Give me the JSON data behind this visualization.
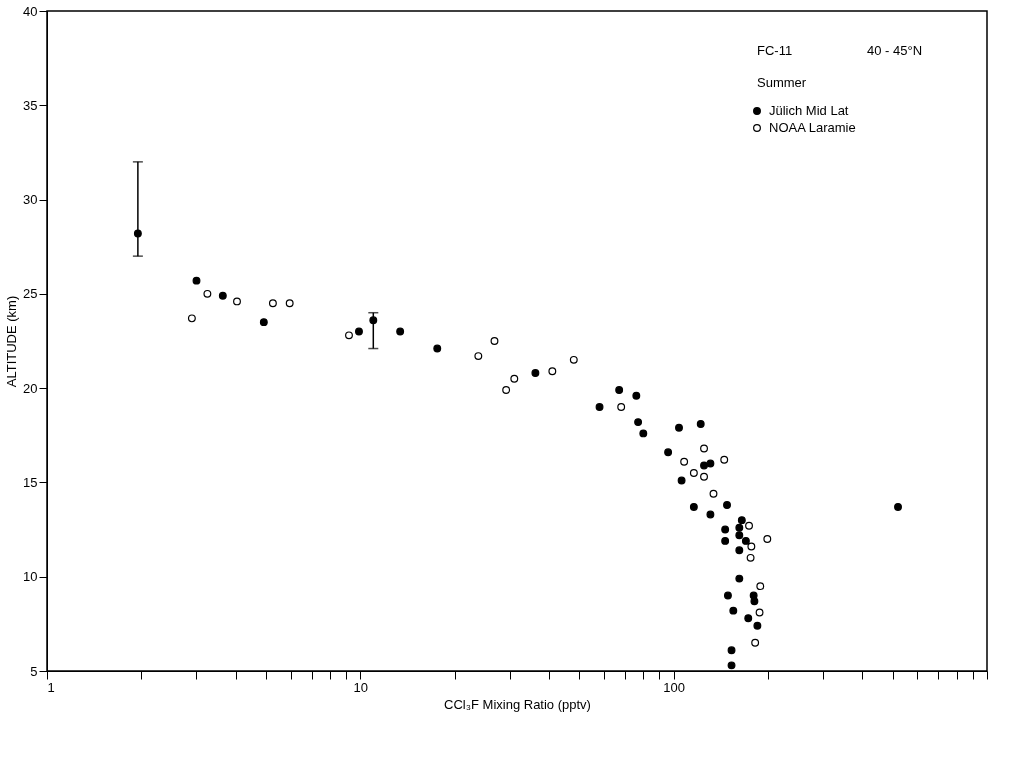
{
  "chart_data": {
    "type": "scatter",
    "xlabel": "CCl₃F Mixing Ratio (pptv)",
    "ylabel": "ALTITUDE (km)",
    "annotations": [
      "FC-11",
      "40 - 45°N",
      "Summer"
    ],
    "log": "x",
    "grid": false,
    "legend": "top right",
    "marker": "circle",
    "xlim": [
      1,
      1000
    ],
    "ylim": [
      5,
      40
    ],
    "xticks": [
      1,
      {
        "value": 2,
        "label": null
      },
      {
        "value": 3,
        "label": null
      },
      {
        "value": 4,
        "label": null
      },
      {
        "value": 5,
        "label": null
      },
      {
        "value": 6,
        "label": null
      },
      {
        "value": 7,
        "label": null
      },
      {
        "value": 8,
        "label": null
      },
      {
        "value": 9,
        "label": null
      },
      10,
      {
        "value": 20,
        "label": null
      },
      {
        "value": 30,
        "label": null
      },
      {
        "value": 40,
        "label": null
      },
      {
        "value": 50,
        "label": null
      },
      {
        "value": 60,
        "label": null
      },
      {
        "value": 70,
        "label": null
      },
      {
        "value": 80,
        "label": null
      },
      {
        "value": 90,
        "label": null
      },
      100,
      {
        "value": 200,
        "label": null
      },
      {
        "value": 300,
        "label": null
      },
      {
        "value": 400,
        "label": null
      },
      {
        "value": 500,
        "label": null
      },
      {
        "value": 600,
        "label": null
      },
      {
        "value": 700,
        "label": null
      },
      {
        "value": 800,
        "label": null
      },
      {
        "value": 900,
        "label": null
      },
      {
        "value": 1000,
        "label": null
      }
    ],
    "yticks": [
      5,
      10,
      15,
      20,
      25,
      30,
      35,
      40
    ],
    "series": [
      {
        "name": "Jülich   Mid Lat",
        "color": "#000000",
        "x": [
          1.95,
          3.0,
          3.64,
          4.92,
          9.9,
          11.0,
          13.4,
          17.6,
          36.2,
          58,
          67,
          76,
          77,
          80,
          96,
          104,
          122,
          125,
          131,
          106,
          116,
          148,
          131,
          165,
          146,
          162,
          146,
          162,
          170,
          162,
          162,
          149,
          180,
          181,
          155,
          173,
          185,
          153,
          153,
          520
        ],
        "values": [
          28.2,
          25.7,
          24.9,
          23.5,
          23.0,
          23.6,
          23.0,
          22.1,
          20.8,
          19.0,
          19.9,
          19.6,
          18.2,
          17.6,
          16.6,
          17.9,
          18.1,
          15.9,
          16.0,
          15.1,
          13.7,
          13.8,
          13.3,
          13.0,
          12.5,
          12.6,
          11.9,
          12.2,
          11.9,
          11.4,
          9.9,
          9.0,
          9.0,
          8.7,
          8.2,
          7.8,
          7.4,
          6.1,
          5.3,
          13.7
        ],
        "errors": [
          [
            27,
            32
          ],
          null,
          null,
          null,
          null,
          [
            22.1,
            24.0
          ],
          null,
          null,
          null,
          null,
          null,
          null,
          null,
          null,
          null,
          null,
          null,
          null,
          null,
          null,
          null,
          null,
          null,
          null,
          null,
          null,
          null,
          null,
          null,
          null,
          null,
          null,
          null,
          null,
          null,
          null,
          null,
          null,
          null,
          null
        ]
      },
      {
        "name": "NOAA  Laramie",
        "color": "#ffffff",
        "x": [
          2.9,
          3.25,
          4.04,
          5.26,
          5.95,
          9.2,
          26.8,
          23.8,
          31,
          29.2,
          41,
          48,
          68,
          125,
          108,
          145,
          116,
          125,
          134,
          174,
          199,
          177,
          176,
          189,
          188,
          182
        ],
        "values": [
          23.7,
          25.0,
          24.6,
          24.5,
          24.5,
          22.8,
          22.5,
          21.7,
          20.5,
          19.9,
          20.9,
          21.5,
          19.0,
          16.8,
          16.1,
          16.2,
          15.5,
          15.3,
          14.4,
          12.7,
          12.0,
          11.6,
          11.0,
          9.5,
          8.1,
          6.5
        ]
      }
    ]
  }
}
